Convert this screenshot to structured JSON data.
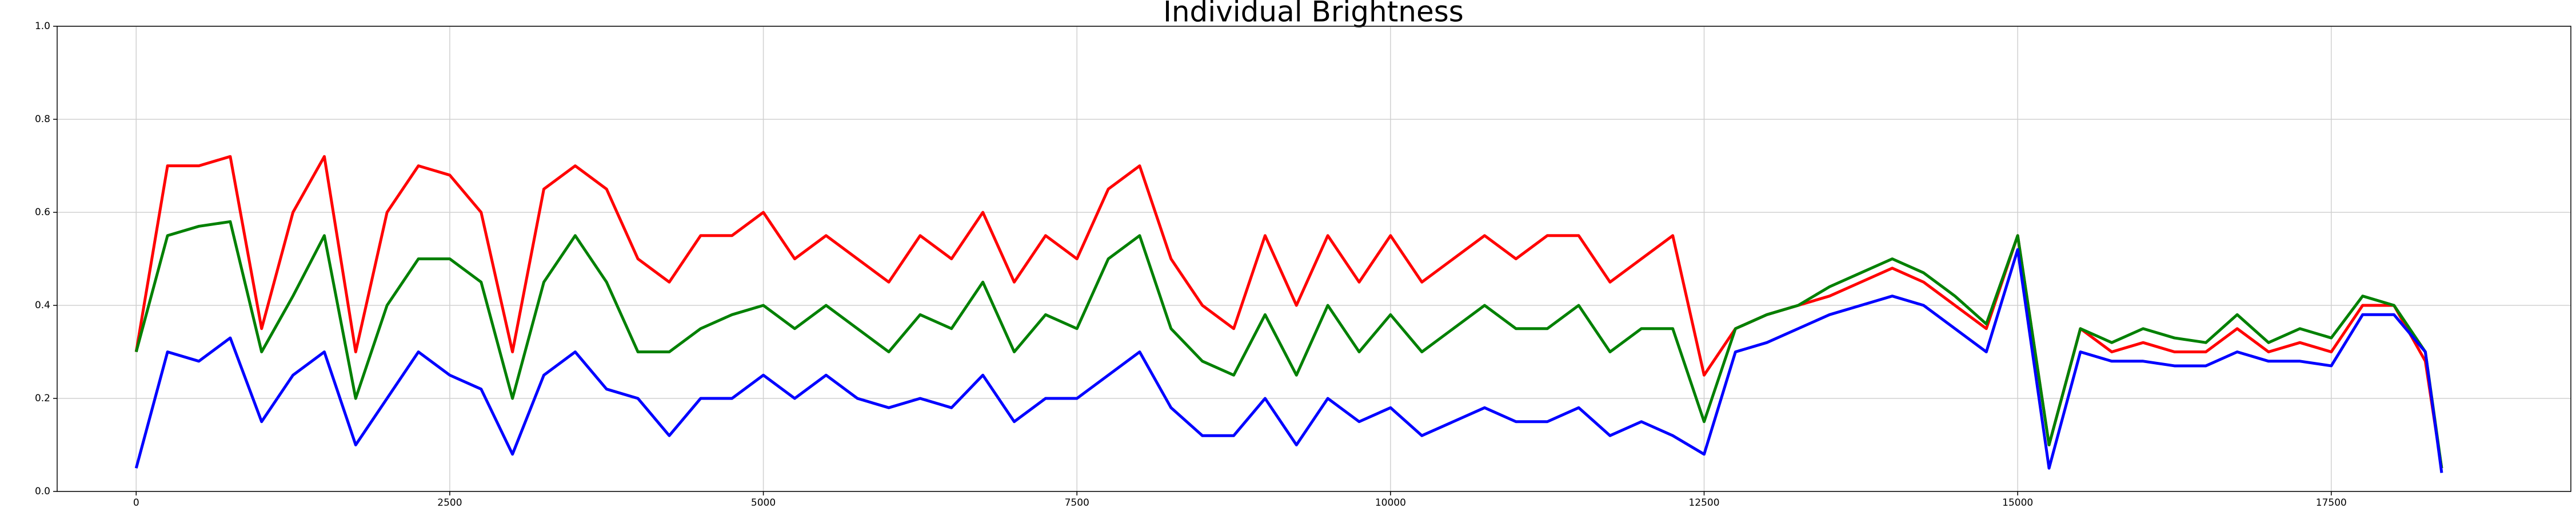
{
  "chart_data": {
    "type": "line",
    "title": "Individual Brightness",
    "x": [
      0,
      250,
      500,
      750,
      1000,
      1250,
      1500,
      1750,
      2000,
      2250,
      2500,
      2750,
      3000,
      3250,
      3500,
      3750,
      4000,
      4250,
      4500,
      4750,
      5000,
      5250,
      5500,
      5750,
      6000,
      6250,
      6500,
      6750,
      7000,
      7250,
      7500,
      7750,
      8000,
      8250,
      8500,
      8750,
      9000,
      9250,
      9500,
      9750,
      10000,
      10250,
      10500,
      10750,
      11000,
      11250,
      11500,
      11750,
      12000,
      12250,
      12500,
      12750,
      13000,
      13250,
      13500,
      13750,
      14000,
      14250,
      14500,
      14750,
      15000,
      15250,
      15500,
      15750,
      16000,
      16250,
      16500,
      16750,
      17000,
      17250,
      17500,
      17750,
      18000,
      18250,
      18380
    ],
    "series": [
      {
        "name": "red",
        "color": "#ff0000",
        "values": [
          0.3,
          0.7,
          0.7,
          0.72,
          0.35,
          0.6,
          0.72,
          0.3,
          0.6,
          0.7,
          0.68,
          0.6,
          0.3,
          0.65,
          0.7,
          0.65,
          0.5,
          0.45,
          0.55,
          0.55,
          0.6,
          0.5,
          0.55,
          0.5,
          0.45,
          0.55,
          0.5,
          0.6,
          0.45,
          0.55,
          0.5,
          0.65,
          0.7,
          0.5,
          0.4,
          0.35,
          0.55,
          0.4,
          0.55,
          0.45,
          0.55,
          0.45,
          0.5,
          0.55,
          0.5,
          0.55,
          0.55,
          0.45,
          0.5,
          0.55,
          0.25,
          0.35,
          0.38,
          0.4,
          0.42,
          0.45,
          0.48,
          0.45,
          0.4,
          0.35,
          0.55,
          0.1,
          0.35,
          0.3,
          0.32,
          0.3,
          0.3,
          0.35,
          0.3,
          0.32,
          0.3,
          0.4,
          0.4,
          0.28,
          0.05
        ]
      },
      {
        "name": "green",
        "color": "#008000",
        "values": [
          0.3,
          0.55,
          0.57,
          0.58,
          0.3,
          0.42,
          0.55,
          0.2,
          0.4,
          0.5,
          0.5,
          0.45,
          0.2,
          0.45,
          0.55,
          0.45,
          0.3,
          0.3,
          0.35,
          0.38,
          0.4,
          0.35,
          0.4,
          0.35,
          0.3,
          0.38,
          0.35,
          0.45,
          0.3,
          0.38,
          0.35,
          0.5,
          0.55,
          0.35,
          0.28,
          0.25,
          0.38,
          0.25,
          0.4,
          0.3,
          0.38,
          0.3,
          0.35,
          0.4,
          0.35,
          0.35,
          0.4,
          0.3,
          0.35,
          0.35,
          0.15,
          0.35,
          0.38,
          0.4,
          0.44,
          0.47,
          0.5,
          0.47,
          0.42,
          0.36,
          0.55,
          0.1,
          0.35,
          0.32,
          0.35,
          0.33,
          0.32,
          0.38,
          0.32,
          0.35,
          0.33,
          0.42,
          0.4,
          0.3,
          0.05
        ]
      },
      {
        "name": "blue",
        "color": "#0000ff",
        "values": [
          0.05,
          0.3,
          0.28,
          0.33,
          0.15,
          0.25,
          0.3,
          0.1,
          0.2,
          0.3,
          0.25,
          0.22,
          0.08,
          0.25,
          0.3,
          0.22,
          0.2,
          0.12,
          0.2,
          0.2,
          0.25,
          0.2,
          0.25,
          0.2,
          0.18,
          0.2,
          0.18,
          0.25,
          0.15,
          0.2,
          0.2,
          0.25,
          0.3,
          0.18,
          0.12,
          0.12,
          0.2,
          0.1,
          0.2,
          0.15,
          0.18,
          0.12,
          0.15,
          0.18,
          0.15,
          0.15,
          0.18,
          0.12,
          0.15,
          0.12,
          0.08,
          0.3,
          0.32,
          0.35,
          0.38,
          0.4,
          0.42,
          0.4,
          0.35,
          0.3,
          0.52,
          0.05,
          0.3,
          0.28,
          0.28,
          0.27,
          0.27,
          0.3,
          0.28,
          0.28,
          0.27,
          0.38,
          0.38,
          0.3,
          0.04
        ]
      }
    ],
    "xlim": [
      -630,
      19410
    ],
    "ylim": [
      0,
      1
    ],
    "xticks": [
      0,
      2500,
      5000,
      7500,
      10000,
      12500,
      15000,
      17500
    ],
    "yticks": [
      {
        "value": 0,
        "label": "0.0"
      },
      {
        "value": 0.2,
        "label": "0.2"
      },
      {
        "value": 0.4,
        "label": "0.4"
      },
      {
        "value": 0.6,
        "label": "0.6"
      },
      {
        "value": 0.8,
        "label": "0.8"
      },
      {
        "value": 1,
        "label": "1.0"
      }
    ],
    "grid": true
  }
}
